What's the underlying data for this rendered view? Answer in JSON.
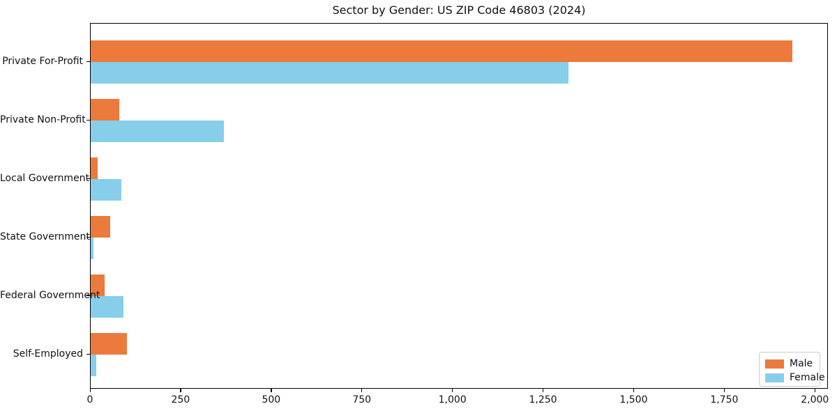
{
  "title": "Sector by Gender: US ZIP Code 46803 (2024)",
  "chart_data": {
    "type": "bar",
    "orientation": "horizontal",
    "title": "Sector by Gender: US ZIP Code 46803 (2024)",
    "categories": [
      "Private For-Profit",
      "Private Non-Profit",
      "Local Government",
      "State Government",
      "Federal Government",
      "Self-Employed"
    ],
    "series": [
      {
        "name": "Male",
        "color": "#ec7a3c",
        "values": [
          1935,
          78,
          20,
          54,
          38,
          100
        ]
      },
      {
        "name": "Female",
        "color": "#87ceeb",
        "values": [
          1318,
          368,
          85,
          8,
          90,
          16
        ]
      }
    ],
    "xlabel": "",
    "ylabel": "",
    "xlim": [
      0,
      2036
    ],
    "xticks": [
      0,
      250,
      500,
      750,
      1000,
      1250,
      1500,
      1750,
      2000
    ],
    "xtick_labels": [
      "0",
      "250",
      "500",
      "750",
      "1,000",
      "1,250",
      "1,500",
      "1,750",
      "2,000"
    ],
    "grid": false,
    "legend": {
      "position": "lower right",
      "entries": [
        "Male",
        "Female"
      ]
    }
  }
}
